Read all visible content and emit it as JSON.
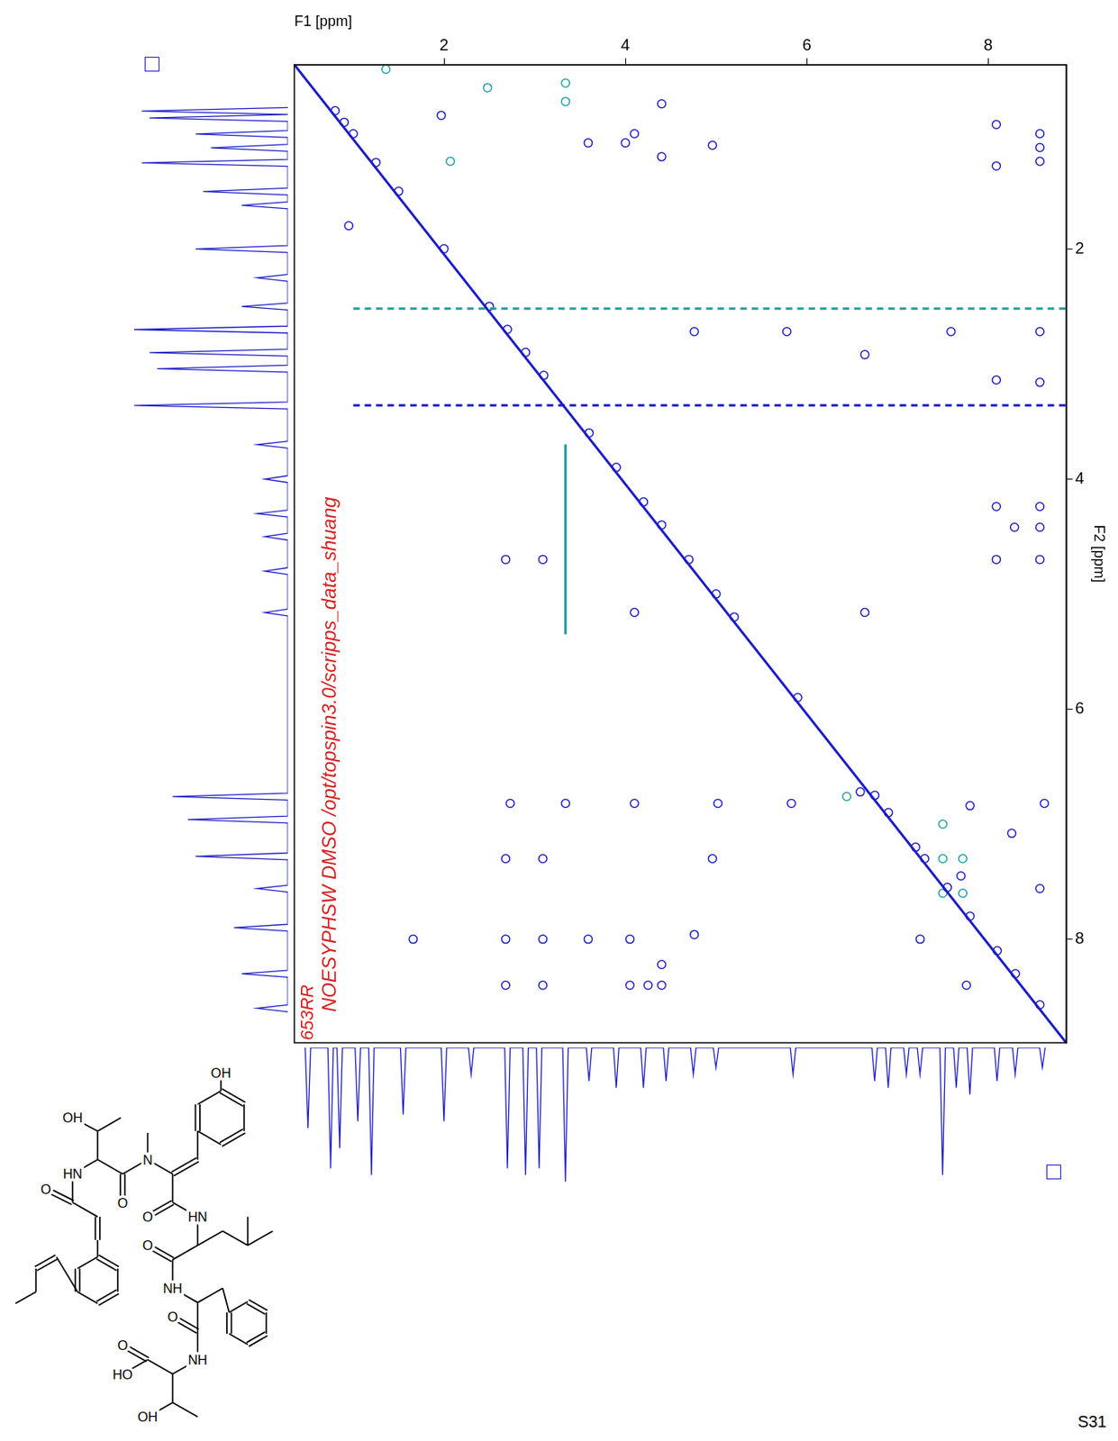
{
  "chart_data": {
    "type": "scatter",
    "x_label": "F1 [ppm]",
    "y_label": "F2 [ppm]",
    "xlim": [
      0.35,
      8.86
    ],
    "ylim": [
      0.4,
      8.9
    ],
    "xticks": [
      2,
      4,
      6,
      8
    ],
    "yticks": [
      2,
      4,
      6,
      8
    ],
    "grid": false,
    "series": [
      {
        "type": "line",
        "color": "#1c1cc8",
        "line_style": "solid",
        "x": [
          0.35,
          8.86
        ],
        "y": [
          0.4,
          8.9
        ]
      },
      {
        "type": "line",
        "color": "#1c1cc8",
        "line_style": "dashed",
        "x": [
          1.0,
          8.86
        ],
        "y": [
          3.36,
          3.36
        ]
      },
      {
        "type": "line",
        "color": "#20a0a0",
        "line_style": "dashed",
        "x": [
          1.0,
          8.86
        ],
        "y": [
          2.52,
          2.52
        ]
      },
      {
        "type": "line",
        "color": "#20a0a0",
        "line_style": "solid",
        "x": [
          3.34,
          3.34
        ],
        "y": [
          3.7,
          5.35
        ]
      },
      {
        "type": "scatter",
        "color": "#1c1cc8",
        "marker": "circle",
        "x": [
          0.8,
          0.9,
          1.0,
          1.25,
          1.5,
          2.0,
          2.5,
          2.7,
          2.9,
          3.1,
          3.6,
          3.9,
          4.2,
          4.4,
          4.7,
          5.0,
          5.2,
          5.9,
          6.75,
          6.9,
          7.2,
          7.3,
          7.55,
          7.8,
          8.1,
          8.3,
          8.57
        ],
        "y": [
          0.8,
          0.9,
          1.0,
          1.25,
          1.5,
          2.0,
          2.5,
          2.7,
          2.9,
          3.1,
          3.6,
          3.9,
          4.2,
          4.4,
          4.7,
          5.0,
          5.2,
          5.9,
          6.75,
          6.9,
          7.2,
          7.3,
          7.55,
          7.8,
          8.1,
          8.3,
          8.57
        ]
      },
      {
        "type": "scatter",
        "color": "#1c1cc8",
        "marker": "circle",
        "x": [
          8.09,
          8.57,
          8.57,
          8.57,
          8.09,
          4.96,
          4.1,
          4.4,
          4.4,
          3.59,
          4.0,
          1.97,
          0.95,
          6.64,
          7.59,
          8.57,
          4.76,
          5.78,
          8.57,
          8.09,
          8.57,
          8.09,
          8.57,
          8.29,
          8.09,
          8.57,
          2.68,
          3.09,
          4.1,
          6.64,
          6.59,
          2.73,
          3.34,
          4.1,
          5.02,
          5.83,
          7.8,
          8.62,
          8.26,
          2.68,
          3.09,
          4.96,
          8.57,
          1.66,
          2.68,
          3.09,
          3.59,
          4.05,
          4.76,
          4.4,
          2.68,
          3.09,
          4.05,
          4.25,
          4.4,
          7.76,
          7.7,
          7.25
        ],
        "y": [
          0.92,
          1.0,
          1.12,
          1.24,
          1.28,
          1.1,
          1.0,
          0.74,
          1.2,
          1.08,
          1.08,
          0.84,
          1.8,
          2.92,
          2.72,
          2.72,
          2.72,
          2.72,
          3.16,
          3.14,
          4.24,
          4.24,
          4.42,
          4.42,
          4.7,
          4.7,
          4.7,
          4.7,
          5.16,
          5.16,
          6.72,
          6.82,
          6.82,
          6.82,
          6.82,
          6.82,
          6.84,
          6.82,
          7.08,
          7.3,
          7.3,
          7.3,
          7.56,
          8.0,
          8.0,
          8.0,
          8.0,
          8.0,
          7.96,
          8.22,
          8.4,
          8.4,
          8.4,
          8.4,
          8.4,
          8.4,
          7.45,
          8.0
        ]
      },
      {
        "type": "scatter",
        "color": "#20a0a0",
        "marker": "circle",
        "x": [
          3.34,
          3.34,
          1.36,
          2.48,
          2.07,
          7.5,
          7.5,
          7.5,
          7.72,
          7.72,
          6.44
        ],
        "y": [
          0.56,
          0.72,
          0.44,
          0.6,
          1.24,
          7.0,
          7.3,
          7.6,
          7.3,
          7.6,
          6.76
        ]
      }
    ]
  },
  "projections": [
    {
      "axis": "F2",
      "color": "#1c1cc8",
      "intensity_lim": [
        0,
        1
      ],
      "ppm": [
        0.8,
        0.86,
        1.0,
        1.12,
        1.25,
        1.5,
        1.62,
        2.0,
        2.25,
        2.5,
        2.7,
        2.9,
        3.04,
        3.36,
        3.7,
        4.0,
        4.3,
        4.5,
        4.8,
        5.16,
        6.76,
        6.96,
        7.28,
        7.56,
        7.9,
        8.3,
        8.6
      ],
      "intensity": [
        0.95,
        0.9,
        0.6,
        0.5,
        0.95,
        0.55,
        0.3,
        0.6,
        0.2,
        0.3,
        1.0,
        0.9,
        0.85,
        1.0,
        0.2,
        0.15,
        0.2,
        0.15,
        0.15,
        0.15,
        0.75,
        0.65,
        0.6,
        0.2,
        0.35,
        0.3,
        0.2
      ]
    },
    {
      "axis": "F1",
      "color": "#1c1cc8",
      "intensity_lim": [
        0,
        1
      ],
      "ppm": [
        0.5,
        0.75,
        0.85,
        1.05,
        1.2,
        1.55,
        2.0,
        2.3,
        2.7,
        2.9,
        3.05,
        3.34,
        3.6,
        3.9,
        4.2,
        4.45,
        4.75,
        5.0,
        5.85,
        6.75,
        6.9,
        7.1,
        7.25,
        7.5,
        7.65,
        7.8,
        8.1,
        8.3,
        8.6
      ],
      "intensity": [
        0.6,
        0.9,
        0.75,
        0.55,
        0.95,
        0.5,
        0.55,
        0.2,
        0.9,
        0.95,
        0.9,
        1.0,
        0.25,
        0.3,
        0.3,
        0.25,
        0.2,
        0.15,
        0.2,
        0.25,
        0.3,
        0.2,
        0.2,
        0.95,
        0.3,
        0.35,
        0.25,
        0.2,
        0.15
      ]
    }
  ],
  "annotations": [
    "653RR",
    "NOESYPHSW DMSO /opt/topspin3.0/scripps_data_shuang"
  ],
  "page_label": "S31",
  "structure": {
    "labels": [
      "OH",
      "N",
      "O",
      "OH",
      "HN",
      "O",
      "O",
      "HN",
      "O",
      "NH",
      "O",
      "NH",
      "HO",
      "O",
      "OH"
    ]
  }
}
